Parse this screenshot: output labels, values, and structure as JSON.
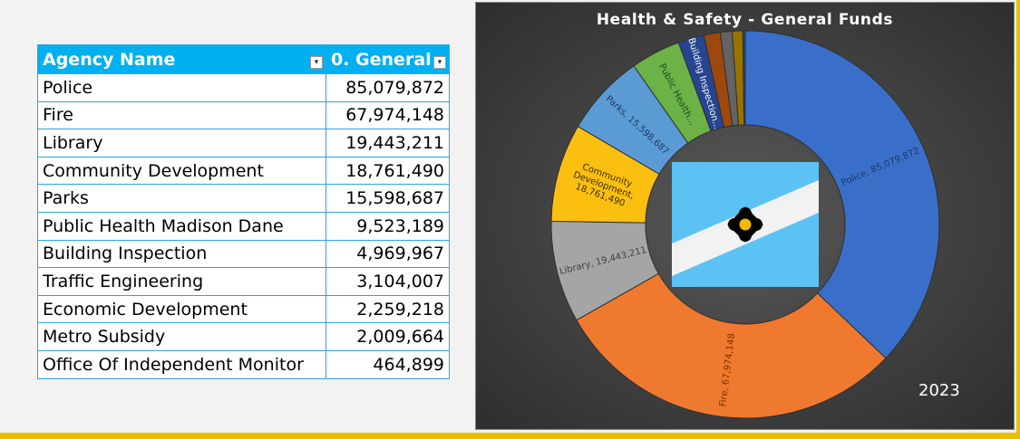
{
  "table": {
    "headers": {
      "name": "Agency Name",
      "value": "0. General"
    },
    "rows": [
      {
        "name": "Police",
        "value": "85,079,872"
      },
      {
        "name": "Fire",
        "value": "67,974,148"
      },
      {
        "name": "Library",
        "value": "19,443,211"
      },
      {
        "name": "Community Development",
        "value": "18,761,490"
      },
      {
        "name": "Parks",
        "value": "15,598,687"
      },
      {
        "name": "Public Health Madison Dane",
        "value": "9,523,189"
      },
      {
        "name": "Building Inspection",
        "value": "4,969,967"
      },
      {
        "name": "Traffic Engineering",
        "value": "3,104,007"
      },
      {
        "name": "Economic Development",
        "value": "2,259,218"
      },
      {
        "name": "Metro Subsidy",
        "value": "2,009,664"
      },
      {
        "name": "Office Of Independent Monitor",
        "value": "464,899"
      }
    ]
  },
  "chart_data": {
    "type": "pie",
    "subtype": "doughnut",
    "title": "Health & Safety - General Funds",
    "annotation": "2023",
    "categories": [
      "Police",
      "Fire",
      "Library",
      "Community Development",
      "Parks",
      "Public Health Madison Dane",
      "Building Inspection",
      "Traffic Engineering",
      "Economic Development",
      "Metro Subsidy",
      "Office Of Independent Monitor"
    ],
    "values": [
      85079872,
      67974148,
      19443211,
      18761490,
      15598687,
      9523189,
      4969967,
      3104007,
      2259218,
      2009664,
      464899
    ],
    "colors": [
      "#3a6fc9",
      "#ef7a2f",
      "#a5a5a5",
      "#fbbf10",
      "#5b9bd5",
      "#6cb247",
      "#26448f",
      "#9e480e",
      "#636363",
      "#997300",
      "#264478"
    ],
    "data_labels": [
      "Police, 85,079,872",
      "Fire, 67,974,148",
      "Library, 19,443,211",
      "Community Development, 18,761,490",
      "Parks, 15,598,687",
      "Public Health...",
      "Building Inspection...",
      "",
      "",
      "",
      ""
    ],
    "label_colors": [
      "#1f3864",
      "#7a3000",
      "#404040",
      "#3d2e00",
      "#1f3864",
      "#1e4620",
      "#ffffff",
      "",
      "",
      "",
      ""
    ]
  }
}
